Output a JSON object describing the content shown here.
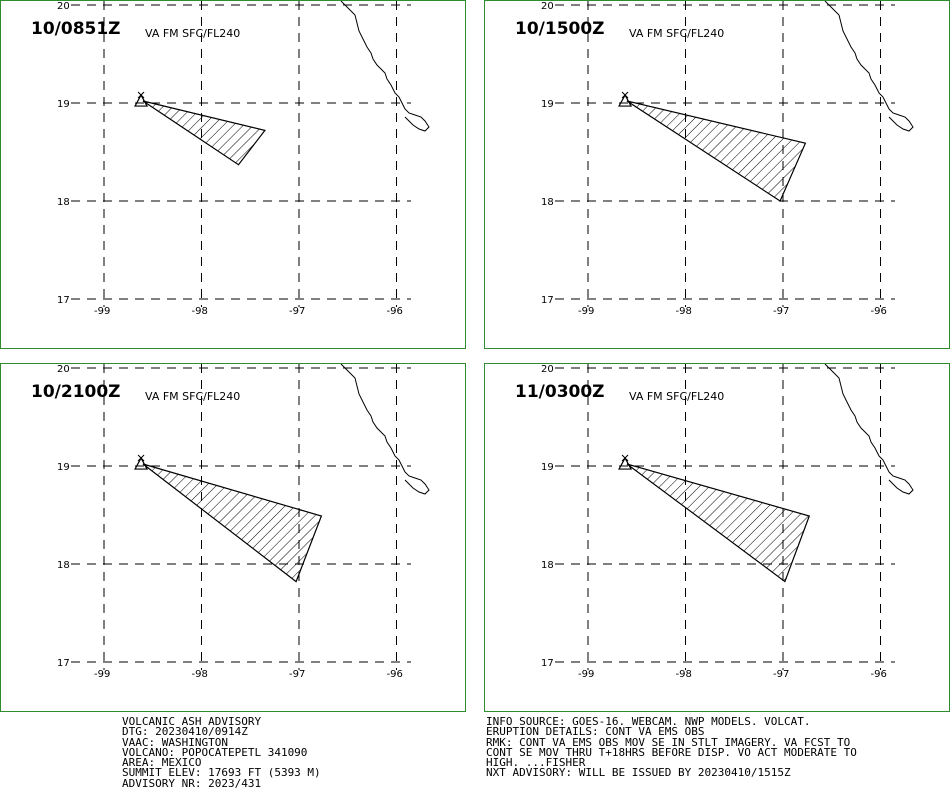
{
  "panels": [
    {
      "time": "10/0851Z",
      "level": "VA FM SFC/FL240",
      "polygon": [
        [
          -98.6,
          19.02
        ],
        [
          -97.35,
          18.72
        ],
        [
          -97.62,
          18.37
        ]
      ]
    },
    {
      "time": "10/1500Z",
      "level": "VA FM SFC/FL240",
      "polygon": [
        [
          -98.6,
          19.02
        ],
        [
          -96.77,
          18.59
        ],
        [
          -97.03,
          18.0
        ]
      ]
    },
    {
      "time": "10/2100Z",
      "level": "VA FM SFC/FL240",
      "polygon": [
        [
          -98.6,
          19.02
        ],
        [
          -96.77,
          18.49
        ],
        [
          -97.03,
          17.82
        ]
      ]
    },
    {
      "time": "11/0300Z",
      "level": "VA FM SFC/FL240",
      "polygon": [
        [
          -98.6,
          19.02
        ],
        [
          -96.73,
          18.49
        ],
        [
          -96.98,
          17.82
        ]
      ]
    }
  ],
  "map": {
    "lat_ticks": [
      "20",
      "19",
      "18",
      "17"
    ],
    "lon_ticks": [
      "-99",
      "-98",
      "-97",
      "-96"
    ],
    "lat_values": [
      20,
      19,
      18,
      17
    ],
    "lon_values": [
      -99,
      -98,
      -97,
      -96
    ],
    "volcano_lon": -98.62,
    "volcano_lat": 19.02,
    "border_color": "#2e8b2e",
    "ash_color": "#000000"
  },
  "advisory_left": [
    "VOLCANIC ASH ADVISORY",
    "DTG: 20230410/0914Z",
    "VAAC: WASHINGTON",
    "VOLCANO: POPOCATEPETL 341090",
    "AREA: MEXICO",
    "SUMMIT ELEV: 17693 FT (5393 M)",
    "ADVISORY NR: 2023/431"
  ],
  "advisory_right": [
    "INFO SOURCE: GOES-16. WEBCAM. NWP MODELS. VOLCAT.",
    "ERUPTION DETAILS: CONT VA EMS OBS",
    "RMK: CONT VA EMS OBS MOV SE IN STLT IMAGERY. VA FCST TO",
    "CONT SE MOV THRU T+18HRS BEFORE DISP. VO ACT MODERATE TO",
    "HIGH. ...FISHER",
    "NXT ADVISORY: WILL BE ISSUED BY 20230410/1515Z"
  ]
}
